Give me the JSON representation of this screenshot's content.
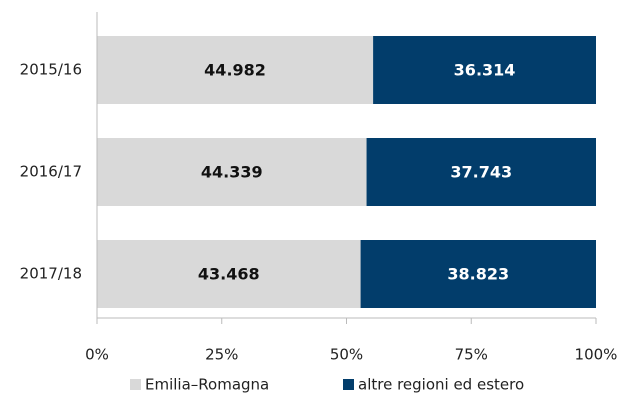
{
  "chart_data": {
    "type": "bar",
    "orientation": "horizontal",
    "stacking": "percent",
    "categories": [
      "2015/16",
      "2016/17",
      "2017/18"
    ],
    "series": [
      {
        "name": "Emilia–Romagna",
        "color": "#d9d9d9",
        "label_color": "#111111",
        "values": [
          44982,
          44339,
          43468
        ],
        "value_labels": [
          "44.982",
          "44.339",
          "43.468"
        ]
      },
      {
        "name": "altre regioni ed estero",
        "color": "#023d6b",
        "label_color": "#ffffff",
        "values": [
          36314,
          37743,
          38823
        ],
        "value_labels": [
          "36.314",
          "37.743",
          "38.823"
        ]
      }
    ],
    "xlim": [
      0,
      100
    ],
    "xticks": [
      {
        "value": 0,
        "label": "0%"
      },
      {
        "value": 25,
        "label": "25%"
      },
      {
        "value": 50,
        "label": "50%"
      },
      {
        "value": 75,
        "label": "75%"
      },
      {
        "value": 100,
        "label": "100%"
      }
    ],
    "legend": "bottom"
  }
}
